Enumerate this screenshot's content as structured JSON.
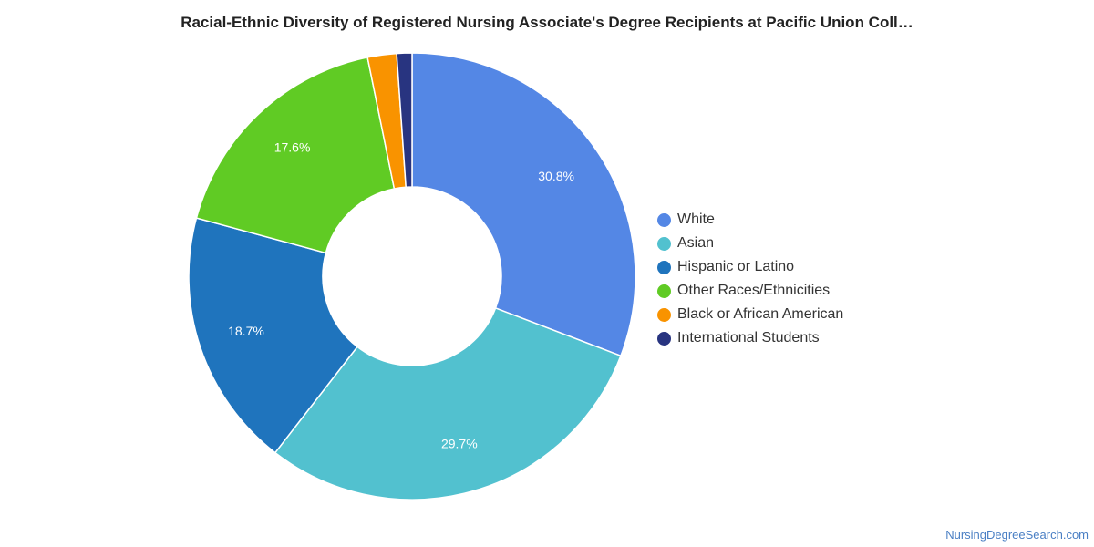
{
  "chart_data": {
    "type": "pie",
    "variant": "donut",
    "title": "Racial-Ethnic Diversity of Registered Nursing Associate's Degree Recipients at Pacific Union Coll…",
    "legend_position": "right",
    "slices": [
      {
        "name": "White",
        "value": 30.8,
        "label": "30.8%",
        "color": "#5487e5"
      },
      {
        "name": "Asian",
        "value": 29.7,
        "label": "29.7%",
        "color": "#52c1cf"
      },
      {
        "name": "Hispanic or Latino",
        "value": 18.7,
        "label": "18.7%",
        "color": "#1f74bd"
      },
      {
        "name": "Other Races/Ethnicities",
        "value": 17.6,
        "label": "17.6%",
        "color": "#60cb24"
      },
      {
        "name": "Black or African American",
        "value": 2.1,
        "label": "",
        "color": "#f99300"
      },
      {
        "name": "International Students",
        "value": 1.1,
        "label": "",
        "color": "#283480"
      }
    ]
  },
  "watermark": "NursingDegreeSearch.com"
}
